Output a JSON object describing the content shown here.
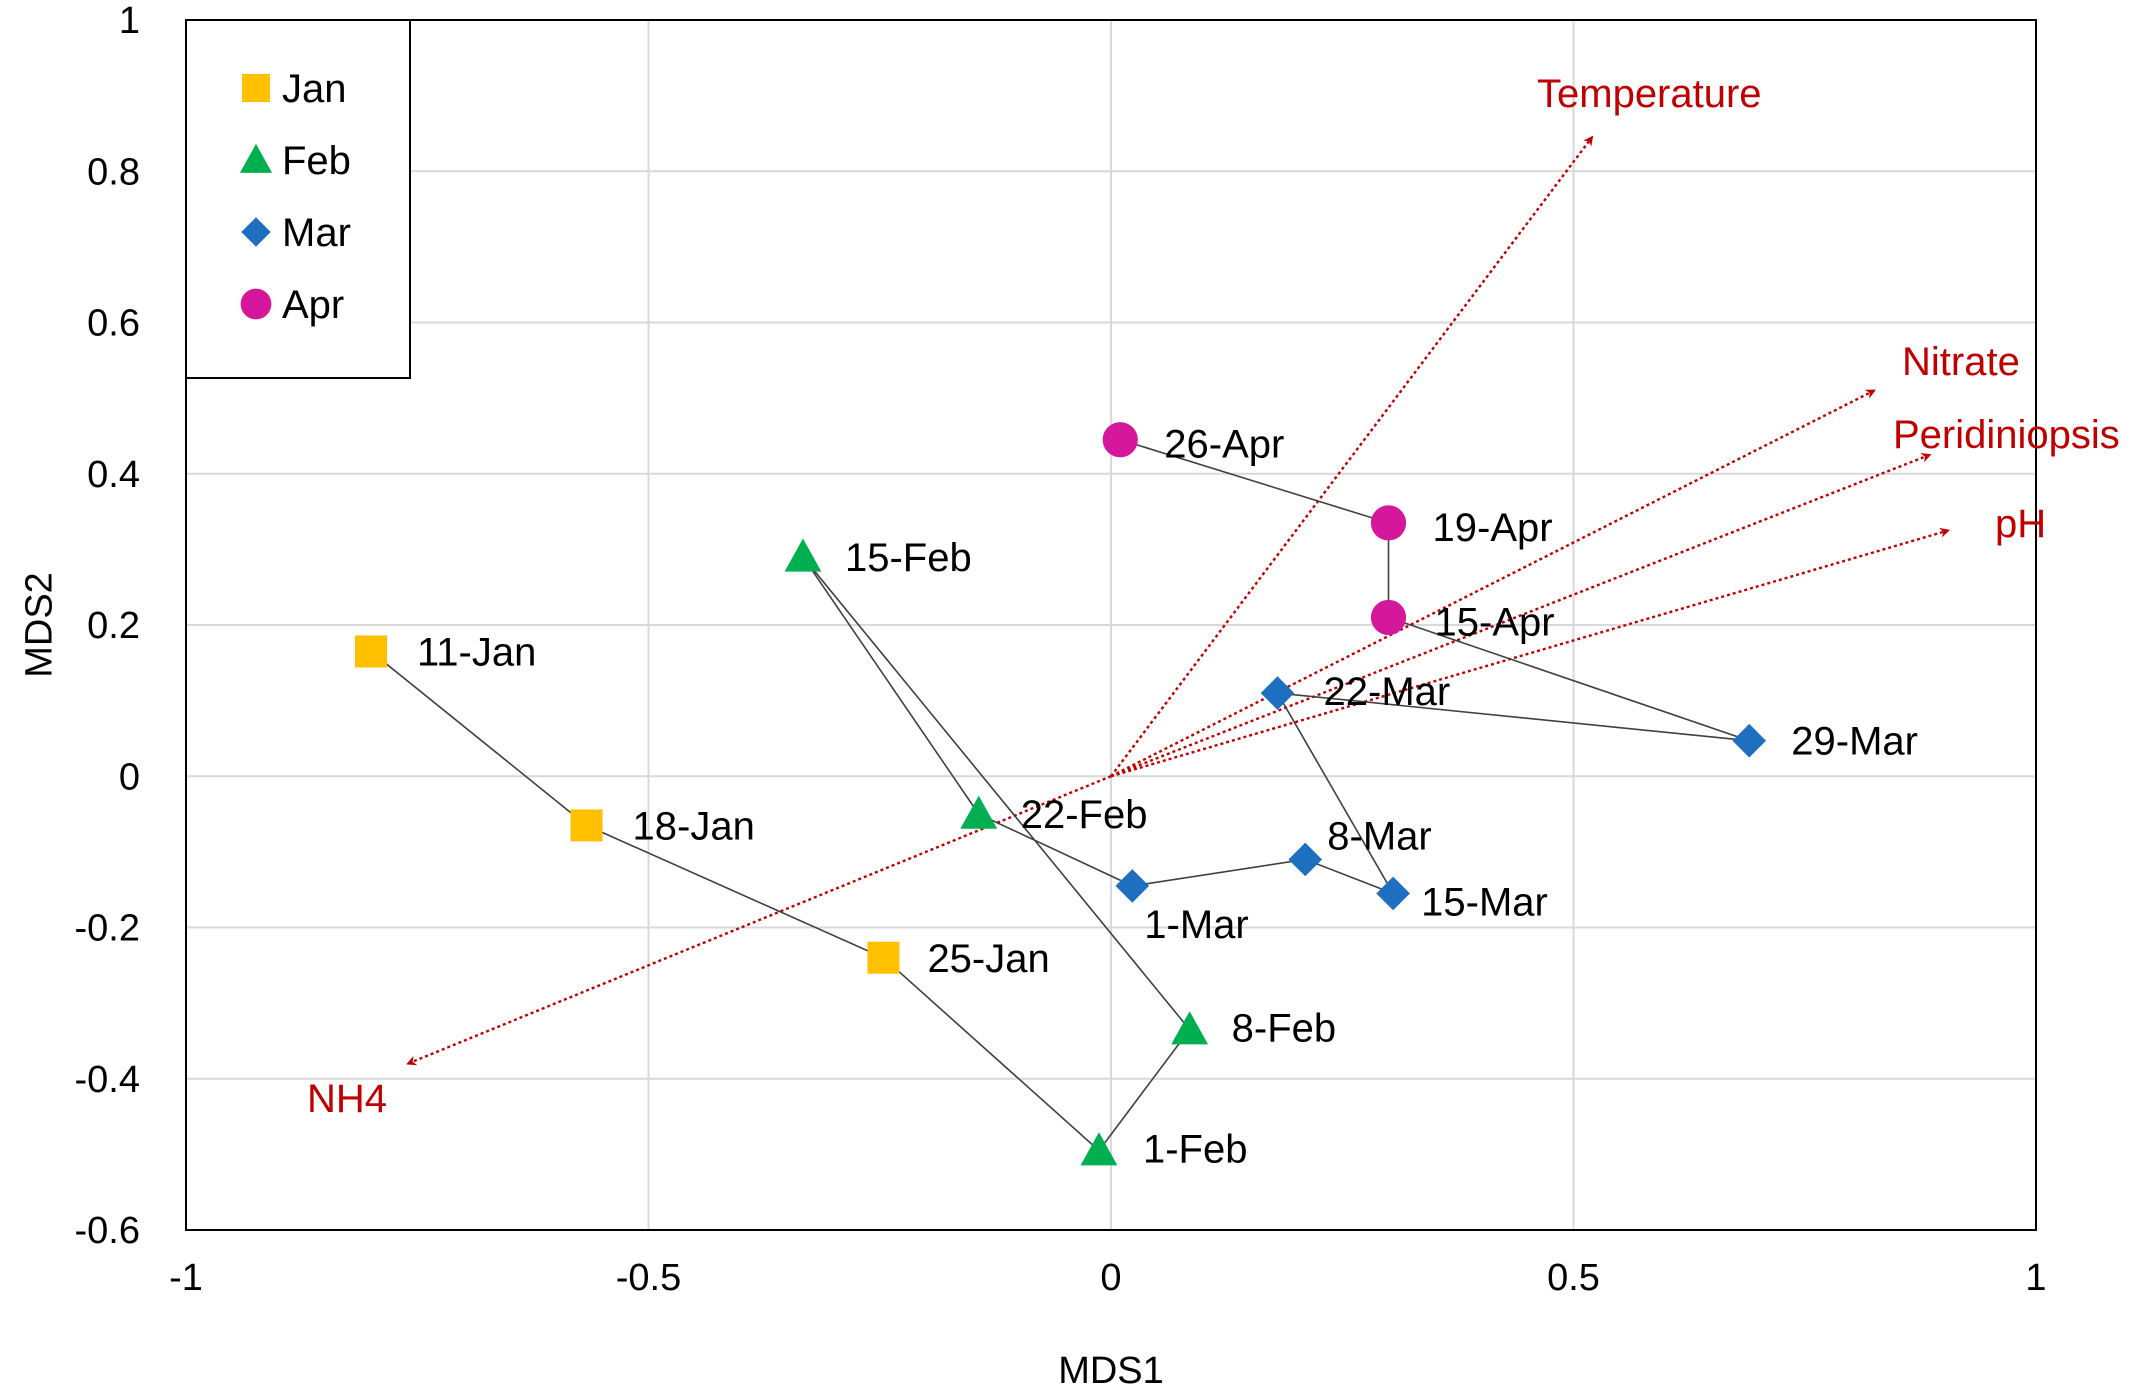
{
  "chart_data": {
    "type": "scatter",
    "title": "",
    "xlabel": "MDS1",
    "ylabel": "MDS2",
    "xlim": [
      -1,
      1
    ],
    "ylim": [
      -0.6,
      1
    ],
    "x_ticks": [
      -1,
      -0.5,
      0,
      0.5,
      1
    ],
    "x_tick_labels": [
      "-1",
      "-0.5",
      "0",
      "0.5",
      "1"
    ],
    "y_ticks": [
      -0.6,
      -0.4,
      -0.2,
      0,
      0.2,
      0.4,
      0.6,
      0.8,
      1
    ],
    "y_tick_labels": [
      "-0.6",
      "-0.4",
      "-0.2",
      "0",
      "0.2",
      "0.4",
      "0.6",
      "0.8",
      "1"
    ],
    "grid": true,
    "legend_position": "top-left",
    "colors": {
      "Jan": "#FFC000",
      "Feb": "#00B050",
      "Mar": "#1F6FC1",
      "Apr": "#D4179B",
      "vector": "#C00000",
      "grid": "#D9D9D9",
      "path": "#404040"
    },
    "series": [
      {
        "name": "Jan",
        "marker": "square",
        "points": [
          {
            "label": "11-Jan",
            "x": -0.8,
            "y": 0.165
          },
          {
            "label": "18-Jan",
            "x": -0.567,
            "y": -0.065
          },
          {
            "label": "25-Jan",
            "x": -0.246,
            "y": -0.24
          }
        ]
      },
      {
        "name": "Feb",
        "marker": "triangle",
        "points": [
          {
            "label": "1-Feb",
            "x": -0.013,
            "y": -0.495
          },
          {
            "label": "8-Feb",
            "x": 0.085,
            "y": -0.335
          },
          {
            "label": "15-Feb",
            "x": -0.333,
            "y": 0.29
          },
          {
            "label": "22-Feb",
            "x": -0.143,
            "y": -0.05
          }
        ]
      },
      {
        "name": "Mar",
        "marker": "diamond",
        "points": [
          {
            "label": "1-Mar",
            "x": 0.023,
            "y": -0.145
          },
          {
            "label": "8-Mar",
            "x": 0.21,
            "y": -0.11
          },
          {
            "label": "15-Mar",
            "x": 0.305,
            "y": -0.155
          },
          {
            "label": "22-Mar",
            "x": 0.18,
            "y": 0.11
          },
          {
            "label": "29-Mar",
            "x": 0.69,
            "y": 0.047
          }
        ]
      },
      {
        "name": "Apr",
        "marker": "circle",
        "points": [
          {
            "label": "15-Apr",
            "x": 0.3,
            "y": 0.21
          },
          {
            "label": "19-Apr",
            "x": 0.3,
            "y": 0.335
          },
          {
            "label": "26-Apr",
            "x": 0.01,
            "y": 0.445
          }
        ]
      }
    ],
    "trajectory": [
      "11-Jan",
      "18-Jan",
      "25-Jan",
      "1-Feb",
      "8-Feb",
      "15-Feb",
      "22-Feb",
      "1-Mar",
      "8-Mar",
      "15-Mar",
      "22-Mar",
      "29-Mar",
      "15-Apr",
      "19-Apr",
      "26-Apr"
    ],
    "vectors": [
      {
        "label": "Temperature",
        "x": 0.52,
        "y": 0.845
      },
      {
        "label": "Nitrate",
        "x": 0.825,
        "y": 0.51
      },
      {
        "label": "Peridiniopsis",
        "x": 0.885,
        "y": 0.425
      },
      {
        "label": "pH",
        "x": 0.905,
        "y": 0.325
      },
      {
        "label": "NH4",
        "x": -0.76,
        "y": -0.38
      }
    ]
  }
}
